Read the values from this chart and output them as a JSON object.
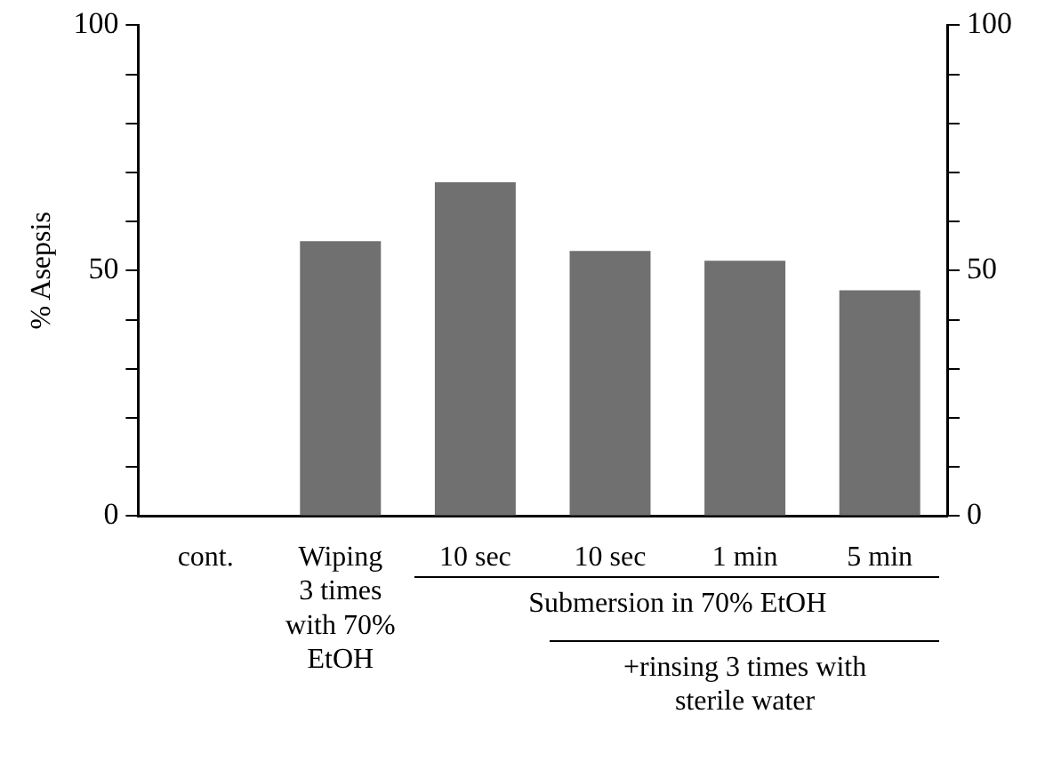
{
  "chart_data": {
    "type": "bar",
    "ylabel": "% Asepsis",
    "categories": [
      "cont.",
      "Wiping\n3 times\nwith 70%\nEtOH",
      "10 sec",
      "10 sec",
      "1 min",
      "5 min"
    ],
    "values": [
      0,
      56,
      68,
      54,
      52,
      46
    ],
    "color": "#707070",
    "ylim": [
      0,
      100
    ],
    "yticks": [
      0,
      {
        "value": 10,
        "label": null
      },
      {
        "value": 20,
        "label": null
      },
      {
        "value": 30,
        "label": null
      },
      {
        "value": 40,
        "label": null
      },
      50,
      {
        "value": 60,
        "label": null
      },
      {
        "value": 70,
        "label": null
      },
      {
        "value": 80,
        "label": null
      },
      {
        "value": 90,
        "label": null
      },
      100
    ],
    "y2lim": [
      0,
      100
    ],
    "y2ticks": [
      0,
      {
        "value": 10,
        "label": null
      },
      {
        "value": 20,
        "label": null
      },
      {
        "value": 30,
        "label": null
      },
      {
        "value": 40,
        "label": null
      },
      50,
      {
        "value": 60,
        "label": null
      },
      {
        "value": 70,
        "label": null
      },
      {
        "value": 80,
        "label": null
      },
      {
        "value": 90,
        "label": null
      },
      100
    ],
    "annotations": [
      "Submersion in 70% EtOH",
      "+rinsing 3 times with sterile water"
    ],
    "grid": false,
    "legend": false
  }
}
